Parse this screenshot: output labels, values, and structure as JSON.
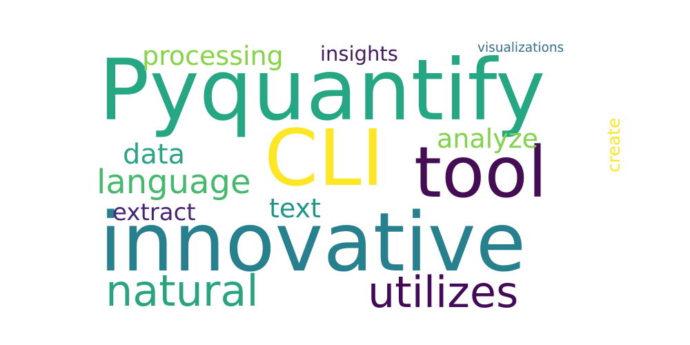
{
  "word_cloud": {
    "background": "#ffffff",
    "words": [
      {
        "id": "pyquantify",
        "text": "Pyquantify",
        "color": "#26a784"
      },
      {
        "id": "innovative",
        "text": "innovative",
        "color": "#27808e"
      },
      {
        "id": "cli",
        "text": "CLI",
        "color": "#fde725"
      },
      {
        "id": "tool",
        "text": "tool",
        "color": "#450d54"
      },
      {
        "id": "utilizes",
        "text": "utilizes",
        "color": "#440a59"
      },
      {
        "id": "natural",
        "text": "natural",
        "color": "#2aa47f"
      },
      {
        "id": "language",
        "text": "language",
        "color": "#45b96c"
      },
      {
        "id": "processing",
        "text": "processing",
        "color": "#86d546"
      },
      {
        "id": "insights",
        "text": "insights",
        "color": "#451a5f"
      },
      {
        "id": "visualizations",
        "text": "visualizations",
        "color": "#2f6e8e"
      },
      {
        "id": "analyze",
        "text": "analyze",
        "color": "#80d449"
      },
      {
        "id": "data",
        "text": "data",
        "color": "#2aa386"
      },
      {
        "id": "text",
        "text": "text",
        "color": "#1f968b"
      },
      {
        "id": "extract",
        "text": "extract",
        "color": "#482476"
      },
      {
        "id": "create",
        "text": "create",
        "color": "#fde725"
      }
    ]
  }
}
